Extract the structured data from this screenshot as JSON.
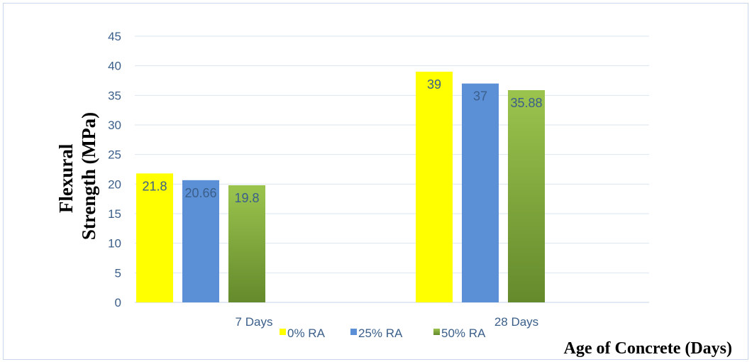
{
  "chart_data": {
    "type": "bar",
    "categories": [
      "7 Days",
      "28 Days"
    ],
    "series": [
      {
        "name": "0% RA",
        "values": [
          21.8,
          39
        ],
        "labels": [
          "21.8",
          "39"
        ],
        "color": "#ffff00"
      },
      {
        "name": "25% RA",
        "values": [
          20.66,
          37
        ],
        "labels": [
          "20.66",
          "37"
        ],
        "color": "#5b8fd6"
      },
      {
        "name": "50% RA",
        "values": [
          19.8,
          35.88
        ],
        "labels": [
          "19.8",
          "35.88"
        ],
        "color": "#7ea540"
      }
    ],
    "ylabel_lines": [
      "Flexural",
      "Strength (MPa)"
    ],
    "xlabel": "Age of Concrete (Days)",
    "ylim": [
      0,
      45
    ],
    "yticks": [
      0,
      5,
      10,
      15,
      20,
      25,
      30,
      35,
      40,
      45
    ],
    "grid": true,
    "legend_position": "bottom"
  }
}
